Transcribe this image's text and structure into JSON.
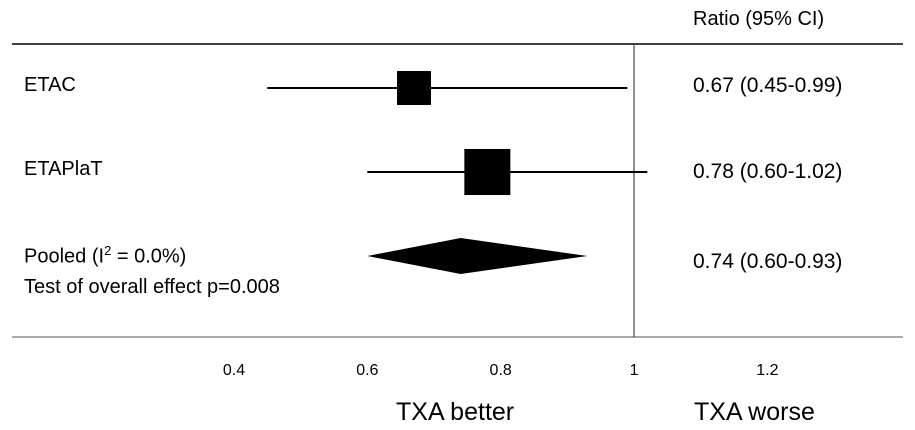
{
  "header": {
    "ratio_col": "Ratio (95% CI)"
  },
  "bottom": {
    "left_label": "TXA better",
    "right_label": "TXA worse"
  },
  "pooled": {
    "label_prefix": "Pooled (I",
    "label_sup": "2",
    "label_suffix": " = 0.0%)",
    "test_label": "Test of overall effect p=0.008"
  },
  "chart_data": {
    "type": "forest",
    "reference_line": 1,
    "xlim": [
      0.4,
      1.2
    ],
    "x_ticks": [
      {
        "value": 0.4,
        "label": "0.4"
      },
      {
        "value": 0.6,
        "label": "0.6"
      },
      {
        "value": 0.8,
        "label": "0.8"
      },
      {
        "value": 1.0,
        "label": "1"
      },
      {
        "value": 1.2,
        "label": "1.2"
      }
    ],
    "studies": [
      {
        "name": "ETAC",
        "estimate": 0.67,
        "lower": 0.45,
        "upper": 0.99,
        "ratio_text": "0.67 (0.45-0.99)",
        "weight": 0.35
      },
      {
        "name": "ETAPlaT",
        "estimate": 0.78,
        "lower": 0.6,
        "upper": 1.02,
        "ratio_text": "0.78 (0.60-1.02)",
        "weight": 0.65
      }
    ],
    "pooled": {
      "estimate": 0.74,
      "lower": 0.6,
      "upper": 0.93,
      "ratio_text": "0.74 (0.60-0.93)"
    }
  }
}
